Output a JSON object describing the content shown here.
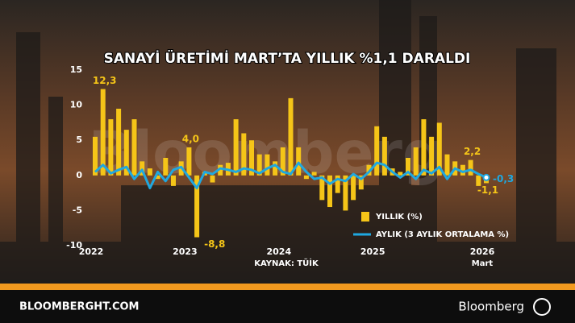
{
  "chart_data": {
    "type": "bar_line",
    "title": "SANAYİ ÜRETİMİ MART’TA YILLIK %1,1 DARALDI",
    "source": "KAYNAK: TÜİK",
    "watermark": "Bloomberg",
    "categories": [
      "2022",
      null,
      null,
      null,
      null,
      null,
      null,
      null,
      null,
      null,
      null,
      null,
      "2023",
      null,
      null,
      null,
      null,
      null,
      null,
      null,
      null,
      null,
      null,
      null,
      "2024",
      null,
      null,
      null,
      null,
      null,
      null,
      null,
      null,
      null,
      null,
      null,
      "2025",
      null,
      null,
      null,
      null,
      null,
      null,
      null,
      null,
      null,
      null,
      null,
      null,
      null,
      "2026"
    ],
    "last_category_sublabel": "Mart",
    "series": [
      {
        "name": "YILLIK (%)",
        "color": "#f5c518",
        "kind": "bar",
        "values": [
          5.5,
          12.3,
          8,
          9.5,
          6.5,
          8,
          2,
          1,
          -0.5,
          2.5,
          -1.5,
          2,
          4.0,
          -8.8,
          0.5,
          -1,
          1.5,
          1.8,
          8,
          6,
          5,
          3,
          3,
          2,
          4,
          11,
          4,
          -0.5,
          0.5,
          -3.5,
          -4.5,
          -2.5,
          -5,
          -3.5,
          -2,
          1.5,
          7,
          5.5,
          1,
          0.5,
          2.5,
          4,
          8,
          5.5,
          7.5,
          3,
          2,
          1.5,
          2.2,
          -1.5,
          -1.1
        ],
        "value_labels": [
          null,
          "12,3",
          null,
          null,
          null,
          null,
          null,
          null,
          null,
          null,
          null,
          null,
          "4,0",
          "-8,8",
          null,
          null,
          null,
          null,
          null,
          null,
          null,
          null,
          null,
          null,
          null,
          null,
          null,
          null,
          null,
          null,
          null,
          null,
          null,
          null,
          null,
          null,
          null,
          null,
          null,
          null,
          null,
          null,
          null,
          null,
          null,
          null,
          null,
          null,
          "2,2",
          null,
          "-1,1"
        ]
      },
      {
        "name": "AYLIK (3 AYLIK ORTALAMA %)",
        "color": "#1fa8e0",
        "kind": "line",
        "values": [
          0.5,
          1.5,
          0.3,
          0.8,
          1.2,
          -0.5,
          0.8,
          -1.8,
          0.5,
          -0.8,
          0.8,
          1.2,
          -0.3,
          -1.8,
          0.5,
          0.2,
          1,
          0.8,
          0.5,
          1,
          0.8,
          0.3,
          1,
          1.5,
          0.5,
          0.2,
          1.8,
          0.5,
          -0.5,
          -0.3,
          -1.2,
          -0.5,
          -0.8,
          0.2,
          -0.5,
          0.5,
          1.8,
          1.5,
          0.5,
          -0.3,
          0.5,
          -0.5,
          0.8,
          0.3,
          1.2,
          -0.5,
          1,
          0.5,
          0.8,
          0.2,
          -0.3
        ],
        "value_labels": [
          null,
          null,
          null,
          null,
          null,
          null,
          null,
          null,
          null,
          null,
          null,
          null,
          null,
          null,
          null,
          null,
          null,
          null,
          null,
          null,
          null,
          null,
          null,
          null,
          null,
          null,
          null,
          null,
          null,
          null,
          null,
          null,
          null,
          null,
          null,
          null,
          null,
          null,
          null,
          null,
          null,
          null,
          null,
          null,
          null,
          null,
          null,
          null,
          null,
          null,
          "-0,3"
        ]
      }
    ],
    "ylim": [
      -10,
      15
    ],
    "yticks": [
      -10,
      -5,
      0,
      5,
      10,
      15
    ]
  },
  "footer": {
    "site": "BLOOMBERGHT.COM",
    "brand": "Bloomberg"
  }
}
